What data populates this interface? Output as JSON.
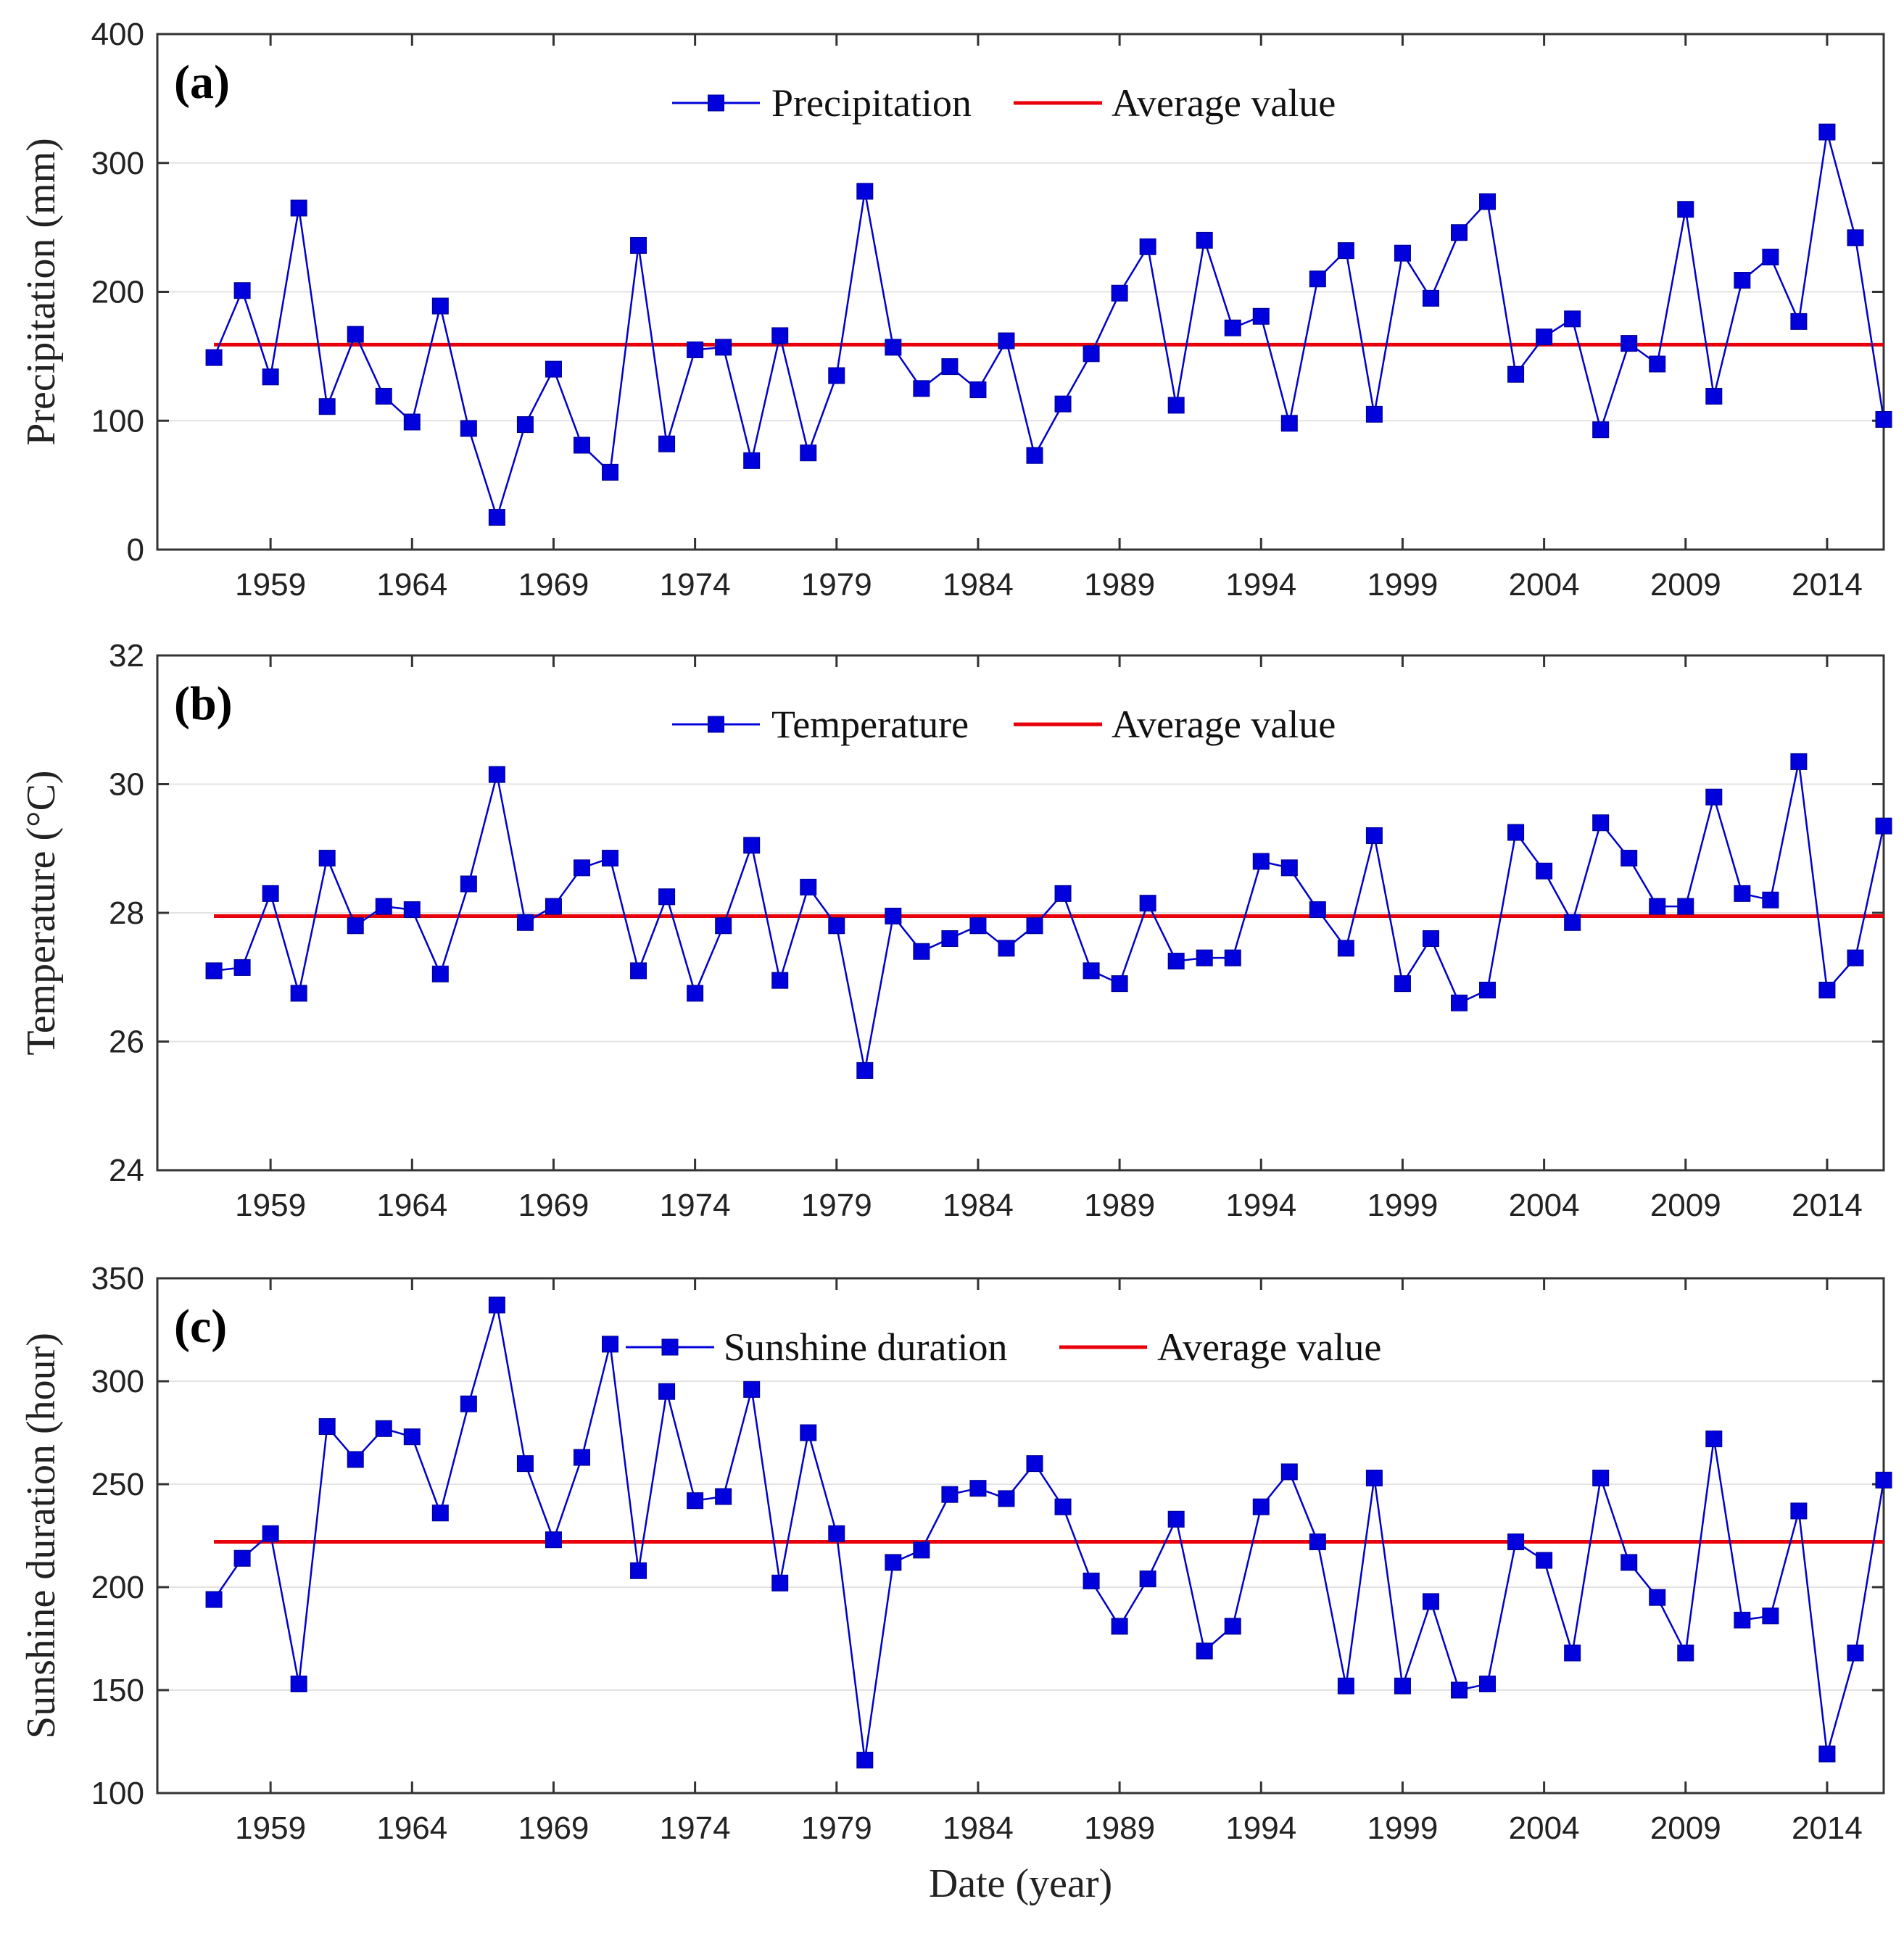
{
  "chart_data": [
    {
      "type": "line",
      "panel_label": "(a)",
      "ylabel": "Precipitation (mm)",
      "xlabel": "",
      "ylim": [
        0,
        400
      ],
      "yticks": [
        0,
        100,
        200,
        300,
        400
      ],
      "xlim": [
        1955,
        2016
      ],
      "xticks": [
        1959,
        1964,
        1969,
        1974,
        1979,
        1984,
        1989,
        1994,
        1999,
        2004,
        2009,
        2014
      ],
      "grid": true,
      "legend_position": "top-center",
      "series": [
        {
          "name": "Precipitation",
          "color": "#0000dd",
          "marker": "square",
          "x": [
            1957,
            1958,
            1959,
            1960,
            1961,
            1962,
            1963,
            1964,
            1965,
            1966,
            1967,
            1968,
            1969,
            1970,
            1971,
            1972,
            1973,
            1974,
            1975,
            1976,
            1977,
            1978,
            1979,
            1980,
            1981,
            1982,
            1983,
            1984,
            1985,
            1986,
            1987,
            1988,
            1989,
            1990,
            1991,
            1992,
            1993,
            1994,
            1995,
            1996,
            1997,
            1998,
            1999,
            2000,
            2001,
            2002,
            2003,
            2004,
            2005,
            2006,
            2007,
            2008,
            2009,
            2010,
            2011,
            2012,
            2013,
            2014,
            2015,
            2016
          ],
          "values": [
            149,
            201,
            134,
            265,
            111,
            167,
            119,
            99,
            189,
            94,
            25,
            97,
            140,
            81,
            60,
            236,
            82,
            155,
            157,
            69,
            166,
            75,
            135,
            278,
            157,
            125,
            142,
            124,
            162,
            73,
            113,
            152,
            199,
            235,
            112,
            240,
            172,
            181,
            98,
            210,
            232,
            105,
            230,
            195,
            246,
            270,
            136,
            165,
            179,
            93,
            160,
            144,
            264,
            119,
            209,
            227,
            177,
            324,
            242,
            101
          ]
        },
        {
          "name": "Average value",
          "color": "#e8000b",
          "constant": 159
        }
      ]
    },
    {
      "type": "line",
      "panel_label": "(b)",
      "ylabel": "Temperature (°C)",
      "xlabel": "",
      "ylim": [
        24,
        32
      ],
      "yticks": [
        24,
        26,
        28,
        30,
        32
      ],
      "xlim": [
        1955,
        2016
      ],
      "xticks": [
        1959,
        1964,
        1969,
        1974,
        1979,
        1984,
        1989,
        1994,
        1999,
        2004,
        2009,
        2014
      ],
      "grid": true,
      "legend_position": "top-center",
      "series": [
        {
          "name": "Temperature",
          "color": "#0000dd",
          "marker": "square",
          "x": [
            1957,
            1958,
            1959,
            1960,
            1961,
            1962,
            1963,
            1964,
            1965,
            1966,
            1967,
            1968,
            1969,
            1970,
            1971,
            1972,
            1973,
            1974,
            1975,
            1976,
            1977,
            1978,
            1979,
            1980,
            1981,
            1982,
            1983,
            1984,
            1985,
            1986,
            1987,
            1988,
            1989,
            1990,
            1991,
            1992,
            1993,
            1994,
            1995,
            1996,
            1997,
            1998,
            1999,
            2000,
            2001,
            2002,
            2003,
            2004,
            2005,
            2006,
            2007,
            2008,
            2009,
            2010,
            2011,
            2012,
            2013,
            2014,
            2015,
            2016
          ],
          "values": [
            27.1,
            27.15,
            28.3,
            26.75,
            28.85,
            27.8,
            28.1,
            28.05,
            27.05,
            28.45,
            30.15,
            27.85,
            28.1,
            28.7,
            28.85,
            27.1,
            28.25,
            26.75,
            27.8,
            29.05,
            26.95,
            28.4,
            27.8,
            25.55,
            27.95,
            27.4,
            27.6,
            27.8,
            27.45,
            27.8,
            28.3,
            27.1,
            26.9,
            28.15,
            27.25,
            27.3,
            27.3,
            28.8,
            28.7,
            28.05,
            27.45,
            29.2,
            26.9,
            27.6,
            26.6,
            26.8,
            29.25,
            28.65,
            27.85,
            29.4,
            28.85,
            28.1,
            28.1,
            29.8,
            28.3,
            28.2,
            30.35,
            26.8,
            27.3,
            29.35
          ]
        },
        {
          "name": "Average value",
          "color": "#e8000b",
          "constant": 27.95
        }
      ]
    },
    {
      "type": "line",
      "panel_label": "(c)",
      "ylabel": "Sunshine duration (hour)",
      "xlabel": "Date (year)",
      "ylim": [
        100,
        350
      ],
      "yticks": [
        100,
        150,
        200,
        250,
        300,
        350
      ],
      "xlim": [
        1955,
        2016
      ],
      "xticks": [
        1959,
        1964,
        1969,
        1974,
        1979,
        1984,
        1989,
        1994,
        1999,
        2004,
        2009,
        2014
      ],
      "grid": true,
      "legend_position": "top-center",
      "series": [
        {
          "name": "Sunshine duration",
          "color": "#0000dd",
          "marker": "square",
          "x": [
            1957,
            1958,
            1959,
            1960,
            1961,
            1962,
            1963,
            1964,
            1965,
            1966,
            1967,
            1968,
            1969,
            1970,
            1971,
            1972,
            1973,
            1974,
            1975,
            1976,
            1977,
            1978,
            1979,
            1980,
            1981,
            1982,
            1983,
            1984,
            1985,
            1986,
            1987,
            1988,
            1989,
            1990,
            1991,
            1992,
            1993,
            1994,
            1995,
            1996,
            1997,
            1998,
            1999,
            2000,
            2001,
            2002,
            2003,
            2004,
            2005,
            2006,
            2007,
            2008,
            2009,
            2010,
            2011,
            2012,
            2013,
            2014,
            2015,
            2016
          ],
          "values": [
            194,
            214,
            226,
            153,
            278,
            262,
            277,
            273,
            236,
            289,
            337,
            260,
            223,
            263,
            318,
            208,
            295,
            242,
            244,
            296,
            202,
            275,
            226,
            116,
            212,
            218,
            245,
            248,
            243,
            260,
            239,
            203,
            181,
            204,
            233,
            169,
            181,
            239,
            256,
            222,
            152,
            253,
            152,
            193,
            150,
            153,
            222,
            213,
            168,
            253,
            212,
            195,
            168,
            272,
            184,
            186,
            237,
            119,
            168,
            252
          ]
        },
        {
          "name": "Average value",
          "color": "#e8000b",
          "constant": 222
        }
      ]
    }
  ]
}
